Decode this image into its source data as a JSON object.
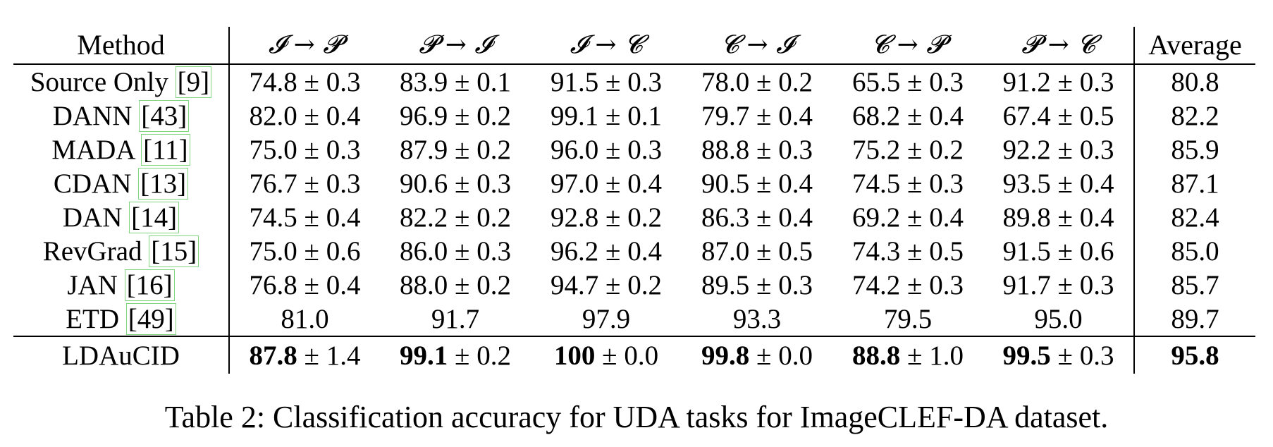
{
  "table": {
    "columns": [
      "Method",
      "𝓘 → 𝓟",
      "𝓟 → 𝓘",
      "𝓘 → 𝓒",
      "𝓒 → 𝓘",
      "𝓒 → 𝓟",
      "𝓟 → 𝓒",
      "Average"
    ],
    "rows": [
      {
        "method": "Source Only",
        "ref": "[9]",
        "cells": [
          [
            "74.8",
            " ± 0.3"
          ],
          [
            "83.9",
            " ± 0.1"
          ],
          [
            "91.5",
            " ± 0.3"
          ],
          [
            "78.0",
            " ± 0.2"
          ],
          [
            "65.5",
            " ± 0.3"
          ],
          [
            "91.2",
            " ± 0.3"
          ]
        ],
        "average": "80.8"
      },
      {
        "method": "DANN",
        "ref": "[43]",
        "cells": [
          [
            "82.0",
            " ± 0.4"
          ],
          [
            "96.9",
            " ± 0.2"
          ],
          [
            "99.1",
            " ± 0.1"
          ],
          [
            "79.7",
            " ± 0.4"
          ],
          [
            "68.2",
            " ± 0.4"
          ],
          [
            "67.4",
            " ± 0.5"
          ]
        ],
        "average": "82.2"
      },
      {
        "method": "MADA",
        "ref": "[11]",
        "cells": [
          [
            "75.0",
            " ± 0.3"
          ],
          [
            "87.9",
            " ± 0.2"
          ],
          [
            "96.0",
            " ± 0.3"
          ],
          [
            "88.8",
            " ± 0.3"
          ],
          [
            "75.2",
            " ± 0.2"
          ],
          [
            "92.2",
            " ± 0.3"
          ]
        ],
        "average": "85.9"
      },
      {
        "method": "CDAN",
        "ref": "[13]",
        "cells": [
          [
            "76.7",
            " ± 0.3"
          ],
          [
            "90.6",
            " ± 0.3"
          ],
          [
            "97.0",
            " ± 0.4"
          ],
          [
            "90.5",
            " ± 0.4"
          ],
          [
            "74.5",
            " ± 0.3"
          ],
          [
            "93.5",
            " ± 0.4"
          ]
        ],
        "average": "87.1"
      },
      {
        "method": "DAN",
        "ref": "[14]",
        "cells": [
          [
            "74.5",
            " ± 0.4"
          ],
          [
            "82.2",
            " ± 0.2"
          ],
          [
            "92.8",
            " ± 0.2"
          ],
          [
            "86.3",
            " ± 0.4"
          ],
          [
            "69.2",
            " ± 0.4"
          ],
          [
            "89.8",
            " ± 0.4"
          ]
        ],
        "average": "82.4"
      },
      {
        "method": "RevGrad",
        "ref": "[15]",
        "cells": [
          [
            "75.0",
            " ± 0.6"
          ],
          [
            "86.0",
            " ± 0.3"
          ],
          [
            "96.2",
            " ± 0.4"
          ],
          [
            "87.0",
            " ± 0.5"
          ],
          [
            "74.3",
            " ± 0.5"
          ],
          [
            "91.5",
            " ± 0.6"
          ]
        ],
        "average": "85.0"
      },
      {
        "method": "JAN",
        "ref": "[16]",
        "cells": [
          [
            "76.8",
            " ± 0.4"
          ],
          [
            "88.0",
            " ± 0.2"
          ],
          [
            "94.7",
            " ± 0.2"
          ],
          [
            "89.5",
            " ± 0.3"
          ],
          [
            "74.2",
            " ± 0.3"
          ],
          [
            "91.7",
            " ± 0.3"
          ]
        ],
        "average": "85.7"
      },
      {
        "method": "ETD",
        "ref": "[49]",
        "cells": [
          [
            "81.0",
            ""
          ],
          [
            "91.7",
            ""
          ],
          [
            "97.9",
            ""
          ],
          [
            "93.3",
            ""
          ],
          [
            "79.5",
            ""
          ],
          [
            "95.0",
            ""
          ]
        ],
        "average": "89.7"
      }
    ],
    "proposed": {
      "method": "LDAuCID",
      "cells": [
        [
          "87.8",
          " ± 1.4"
        ],
        [
          "99.1",
          " ± 0.2"
        ],
        [
          "100",
          " ± 0.0"
        ],
        [
          "99.8",
          " ± 0.0"
        ],
        [
          "88.8",
          " ± 1.0"
        ],
        [
          "99.5",
          " ± 0.3"
        ]
      ],
      "average": "95.8"
    }
  },
  "caption": "Table 2: Classification accuracy for UDA tasks for ImageCLEF-DA dataset.",
  "colors": {
    "citation_box": "#7fd67f",
    "text": "#000000"
  }
}
